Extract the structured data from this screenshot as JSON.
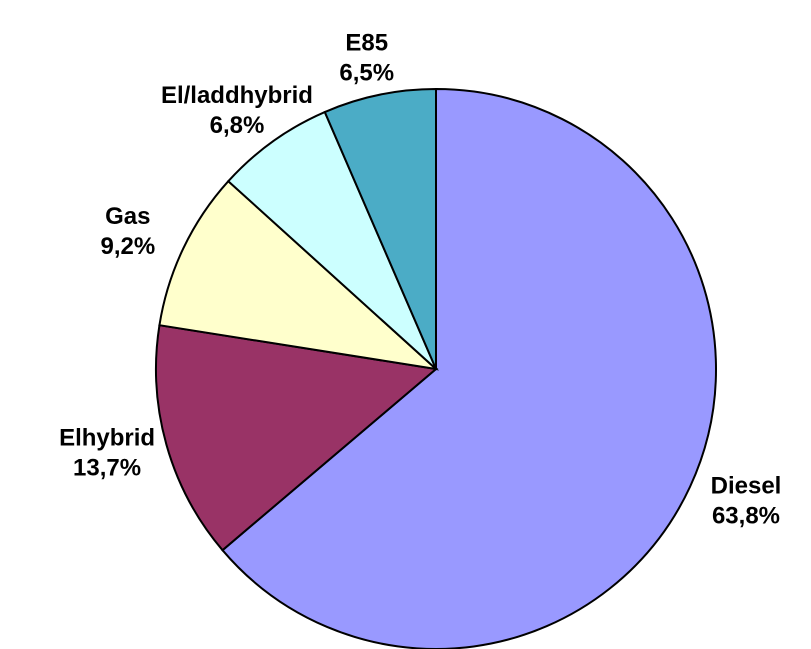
{
  "chart_data": {
    "type": "pie",
    "categories": [
      "Diesel",
      "Elhybrid",
      "Gas",
      "El/laddhybrid",
      "E85"
    ],
    "values": [
      63.8,
      13.7,
      9.2,
      6.8,
      6.5
    ],
    "value_labels": [
      "63,8%",
      "13,7%",
      "9,2%",
      "6,8%",
      "6,5%"
    ],
    "colors": [
      "#9999ff",
      "#993366",
      "#ffffcc",
      "#ccffff",
      "#4bacc6"
    ]
  }
}
